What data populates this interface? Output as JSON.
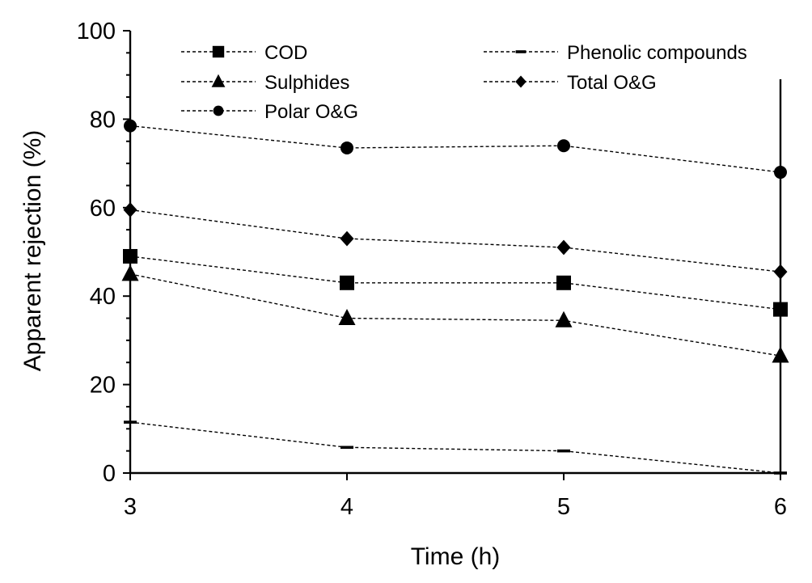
{
  "chart_data": {
    "type": "line",
    "title": "",
    "xlabel": "Time (h)",
    "ylabel": "Apparent rejection (%)",
    "x": [
      3,
      4,
      5,
      6
    ],
    "xlim": [
      3,
      6
    ],
    "ylim": [
      0,
      100
    ],
    "xticks": [
      "3",
      "4",
      "5",
      "6"
    ],
    "yticks": [
      "0",
      "20",
      "40",
      "60",
      "80",
      "100"
    ],
    "grid": false,
    "legend_position": "top",
    "series": [
      {
        "name": "COD",
        "marker": "square",
        "values": [
          49,
          43,
          43,
          37
        ]
      },
      {
        "name": "Phenolic compounds",
        "marker": "dash",
        "values": [
          11.5,
          5.8,
          5,
          0
        ]
      },
      {
        "name": "Sulphides",
        "marker": "triangle",
        "values": [
          45,
          35,
          34.5,
          26.5
        ]
      },
      {
        "name": "Total O&G",
        "marker": "diamond",
        "values": [
          59.5,
          53,
          51,
          45.5
        ]
      },
      {
        "name": "Polar O&G",
        "marker": "circle",
        "values": [
          78.5,
          73.5,
          74,
          68
        ]
      }
    ],
    "colors": {
      "line": "#000000",
      "marker": "#000000",
      "background": "#ffffff"
    }
  }
}
